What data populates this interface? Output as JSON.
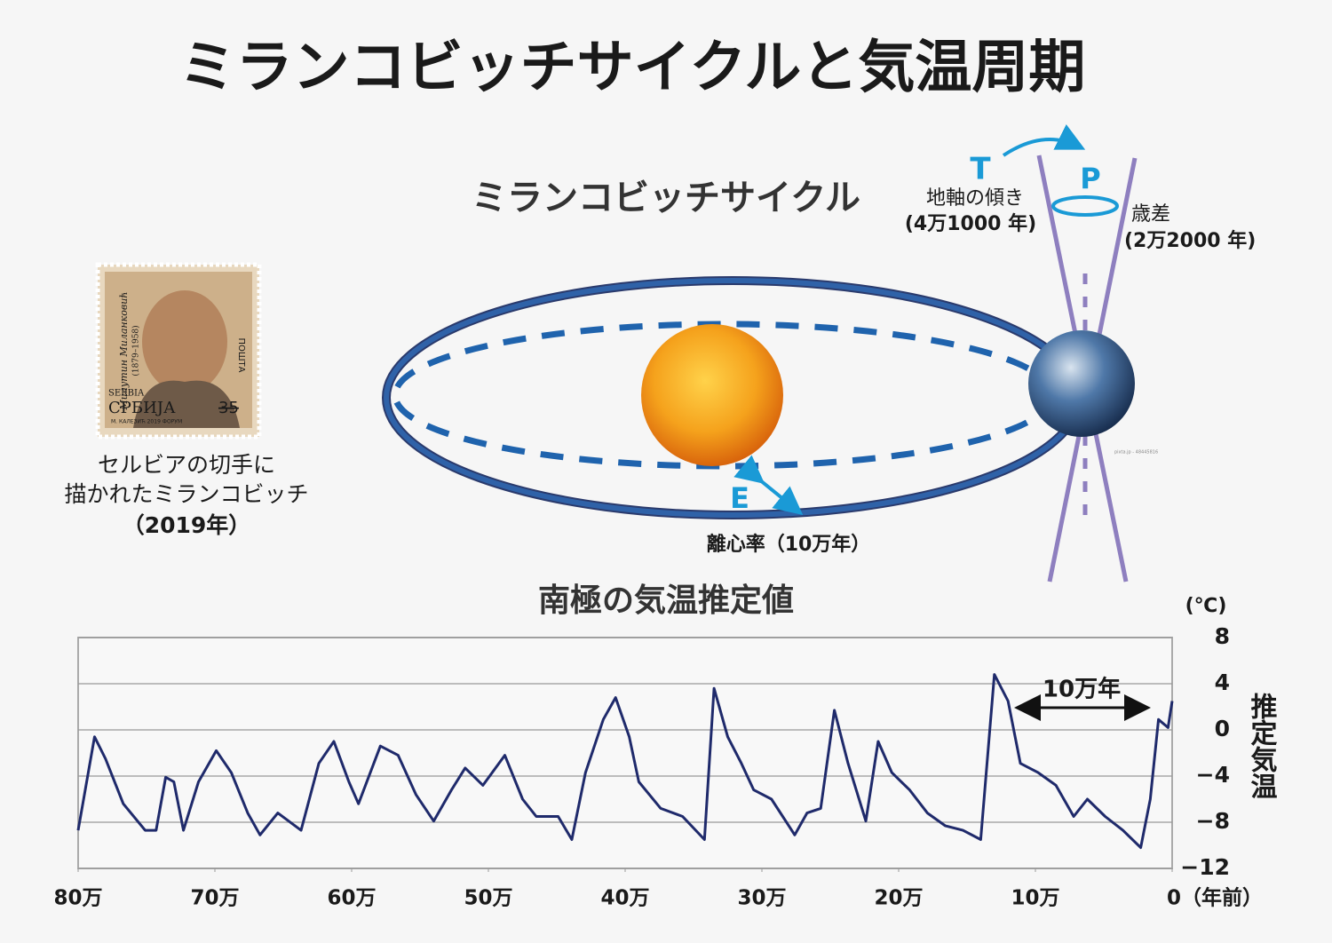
{
  "header": {
    "title": "ミランコビッチサイクルと気温周期"
  },
  "diagram": {
    "title": "ミランコビッチサイクル",
    "t_letter": "T",
    "t_label": "地軸の傾き",
    "t_period": "(4万1000 年)",
    "p_letter": "P",
    "p_label": "歳差",
    "p_period": "(2万2000 年)",
    "e_letter": "E",
    "e_label": "離心率（10万年）",
    "credit": "pixta.jp - 48445816"
  },
  "stamp": {
    "name": "Милутин Миланковић",
    "years": "(1879–1958)",
    "country": "SERBIA",
    "country_local": "СРБИЈА",
    "price": "35",
    "post": "ПОШТА",
    "footer": "М. КАЛЕЗИЋ   2019   ФОРУМ",
    "caption": [
      "セルビアの切手に",
      "描かれたミランコビッチ",
      "（2019年）"
    ]
  },
  "chart_data": {
    "type": "line",
    "title": "南極の気温推定値",
    "y_unit": "(℃)",
    "y_label": "推定気温",
    "annotation": "10万年",
    "xlim": [
      800000,
      0
    ],
    "xticks": [
      {
        "value": 800000,
        "label": "80万"
      },
      {
        "value": 700000,
        "label": "70万"
      },
      {
        "value": 600000,
        "label": "60万"
      },
      {
        "value": 500000,
        "label": "50万"
      },
      {
        "value": 400000,
        "label": "40万"
      },
      {
        "value": 300000,
        "label": "30万"
      },
      {
        "value": 200000,
        "label": "20万"
      },
      {
        "value": 100000,
        "label": "10万"
      },
      {
        "value": 0,
        "label": "0（年前）"
      }
    ],
    "ylim": [
      -12,
      8
    ],
    "yticks": [
      {
        "value": -12,
        "label": "−12"
      },
      {
        "value": -8,
        "label": "−8"
      },
      {
        "value": -4,
        "label": "−4"
      },
      0,
      4,
      8
    ],
    "grid": true,
    "color": "#1f2a6b",
    "x": [
      800000,
      788000,
      780000,
      767000,
      751000,
      743000,
      736000,
      730000,
      723000,
      712000,
      699000,
      688000,
      676000,
      667000,
      654000,
      637000,
      624000,
      613000,
      602000,
      595000,
      579000,
      566000,
      553000,
      540000,
      527000,
      517000,
      504000,
      488000,
      475000,
      465000,
      449000,
      439000,
      429000,
      416000,
      407000,
      397000,
      390000,
      374000,
      358000,
      342000,
      335000,
      325000,
      315000,
      306000,
      293000,
      276000,
      267000,
      257000,
      247000,
      237000,
      224000,
      215000,
      205000,
      192000,
      179000,
      166000,
      153000,
      140000,
      130000,
      120000,
      111000,
      98000,
      85000,
      72000,
      62000,
      49000,
      36000,
      23000,
      16000,
      10000,
      3000,
      0
    ],
    "values": [
      -8.7,
      -0.6,
      -2.5,
      -6.4,
      -8.7,
      -8.7,
      -4.1,
      -4.5,
      -8.7,
      -4.5,
      -1.8,
      -3.7,
      -7.2,
      -9.1,
      -7.2,
      -8.7,
      -2.9,
      -1.0,
      -4.5,
      -6.4,
      -1.4,
      -2.2,
      -5.6,
      -7.9,
      -5.2,
      -3.3,
      -4.8,
      -2.2,
      -6.0,
      -7.5,
      -7.5,
      -9.5,
      -3.7,
      0.9,
      2.8,
      -0.6,
      -4.5,
      -6.8,
      -7.5,
      -9.5,
      3.6,
      -0.6,
      -2.9,
      -5.2,
      -6.0,
      -9.1,
      -7.2,
      -6.8,
      1.7,
      -2.9,
      -7.9,
      -1.0,
      -3.7,
      -5.2,
      -7.2,
      -8.3,
      -8.7,
      -9.5,
      4.8,
      2.5,
      -2.9,
      -3.7,
      -4.8,
      -7.5,
      -6.0,
      -7.5,
      -8.7,
      -10.2,
      -6.0,
      0.9,
      0.2,
      2.5
    ]
  }
}
